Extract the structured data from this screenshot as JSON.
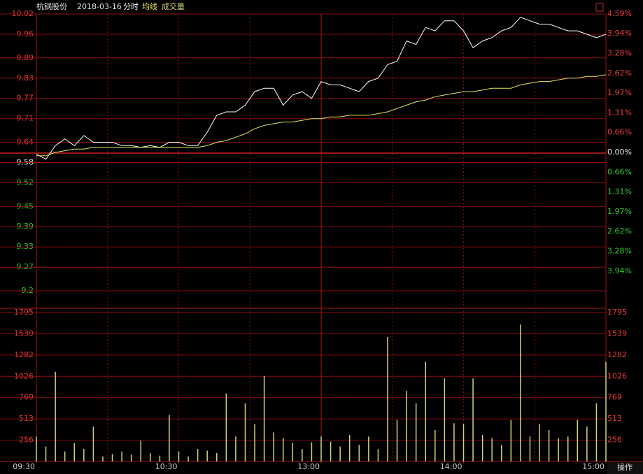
{
  "chart_data": [
    {
      "type": "line",
      "title": "杭锅股份",
      "subtitle": "2018-03-16",
      "x": [
        0,
        4,
        8,
        12,
        16,
        20,
        24,
        28,
        32,
        36,
        40,
        44,
        48,
        52,
        56,
        60,
        64,
        68,
        72,
        76,
        80,
        84,
        88,
        92,
        96,
        100,
        104,
        108,
        112,
        116,
        120,
        124,
        128,
        132,
        136,
        140,
        144,
        148,
        152,
        156,
        160,
        164,
        168,
        172,
        176,
        180,
        184,
        188,
        192,
        196,
        200,
        204,
        208,
        212,
        216,
        220,
        224,
        228,
        232,
        236,
        240
      ],
      "xlim": [
        0,
        240
      ],
      "series": [
        {
          "name": "分时",
          "color": "#ffffff",
          "values": [
            9.605,
            9.59,
            9.63,
            9.65,
            9.63,
            9.66,
            9.64,
            9.64,
            9.64,
            9.63,
            9.63,
            9.625,
            9.63,
            9.625,
            9.64,
            9.64,
            9.63,
            9.63,
            9.67,
            9.72,
            9.73,
            9.73,
            9.75,
            9.79,
            9.8,
            9.8,
            9.75,
            9.78,
            9.79,
            9.77,
            9.82,
            9.81,
            9.81,
            9.8,
            9.79,
            9.82,
            9.83,
            9.87,
            9.88,
            9.94,
            9.93,
            9.98,
            9.97,
            10.0,
            10.0,
            9.97,
            9.92,
            9.94,
            9.95,
            9.97,
            9.98,
            10.01,
            10.0,
            9.99,
            9.99,
            9.98,
            9.97,
            9.97,
            9.96,
            9.95,
            9.96
          ]
        },
        {
          "name": "均线",
          "color": "#e6e65a",
          "values": [
            9.6,
            9.6,
            9.61,
            9.615,
            9.62,
            9.62,
            9.625,
            9.625,
            9.625,
            9.625,
            9.625,
            9.625,
            9.625,
            9.625,
            9.625,
            9.625,
            9.625,
            9.625,
            9.63,
            9.64,
            9.645,
            9.655,
            9.665,
            9.68,
            9.69,
            9.695,
            9.7,
            9.7,
            9.705,
            9.71,
            9.71,
            9.715,
            9.715,
            9.72,
            9.72,
            9.72,
            9.725,
            9.73,
            9.74,
            9.75,
            9.76,
            9.765,
            9.775,
            9.78,
            9.785,
            9.79,
            9.79,
            9.795,
            9.8,
            9.8,
            9.8,
            9.81,
            9.815,
            9.82,
            9.82,
            9.825,
            9.83,
            9.83,
            9.835,
            9.835,
            9.84
          ]
        }
      ],
      "ylim": [
        9.2,
        10.02
      ],
      "yticks": [
        10.02,
        9.96,
        9.89,
        9.83,
        9.77,
        9.71,
        9.64,
        9.58,
        9.52,
        9.45,
        9.39,
        9.33,
        9.27,
        9.2
      ],
      "y2lim": [
        -4.59,
        4.59
      ],
      "y2ticks": [
        {
          "value": 4.59,
          "label": "4.59%"
        },
        {
          "value": 3.94,
          "label": "3.94%"
        },
        {
          "value": 3.28,
          "label": "3.28%"
        },
        {
          "value": 2.62,
          "label": "2.62%"
        },
        {
          "value": 1.97,
          "label": "1.97%"
        },
        {
          "value": 1.31,
          "label": "1.31%"
        },
        {
          "value": 0.66,
          "label": "0.66%"
        },
        {
          "value": 0,
          "label": "0.00%"
        },
        {
          "value": -0.66,
          "label": "0.66%"
        },
        {
          "value": -1.31,
          "label": "1.31%"
        },
        {
          "value": -1.97,
          "label": "1.97%"
        },
        {
          "value": -2.62,
          "label": "2.62%"
        },
        {
          "value": -3.28,
          "label": "3.28%"
        },
        {
          "value": -3.94,
          "label": "3.94%"
        }
      ],
      "grid": true
    },
    {
      "type": "bar",
      "x": [
        0,
        4,
        8,
        12,
        16,
        20,
        24,
        28,
        32,
        36,
        40,
        44,
        48,
        52,
        56,
        60,
        64,
        68,
        72,
        76,
        80,
        84,
        88,
        92,
        96,
        100,
        104,
        108,
        112,
        116,
        120,
        124,
        128,
        132,
        136,
        140,
        144,
        148,
        152,
        156,
        160,
        164,
        168,
        172,
        176,
        180,
        184,
        188,
        192,
        196,
        200,
        204,
        208,
        212,
        216,
        220,
        224,
        228,
        232,
        236,
        240
      ],
      "xlim": [
        0,
        240
      ],
      "xticks": [
        {
          "value": 0,
          "label": "09:30"
        },
        {
          "value": 60,
          "label": "10:30"
        },
        {
          "value": 120,
          "label": "13:00"
        },
        {
          "value": 180,
          "label": "14:00"
        },
        {
          "value": 240,
          "label": "15:00"
        }
      ],
      "series": [
        {
          "name": "成交量",
          "color": "#d2d27a",
          "values": [
            300,
            180,
            1080,
            120,
            220,
            150,
            420,
            60,
            90,
            120,
            80,
            250,
            100,
            70,
            560,
            120,
            60,
            150,
            130,
            100,
            820,
            300,
            700,
            450,
            1030,
            350,
            280,
            220,
            150,
            230,
            300,
            240,
            180,
            320,
            200,
            300,
            150,
            1500,
            500,
            850,
            700,
            1200,
            380,
            1000,
            460,
            450,
            1000,
            320,
            280,
            200,
            500,
            1650,
            300,
            450,
            380,
            280,
            300,
            500,
            420,
            700,
            1200
          ]
        }
      ],
      "ylim": [
        0,
        1795
      ],
      "yticks": [
        1795,
        1539,
        1282,
        1026,
        769,
        513,
        256
      ],
      "grid": true
    },
    {
      "type": "button",
      "label": "操作"
    }
  ]
}
